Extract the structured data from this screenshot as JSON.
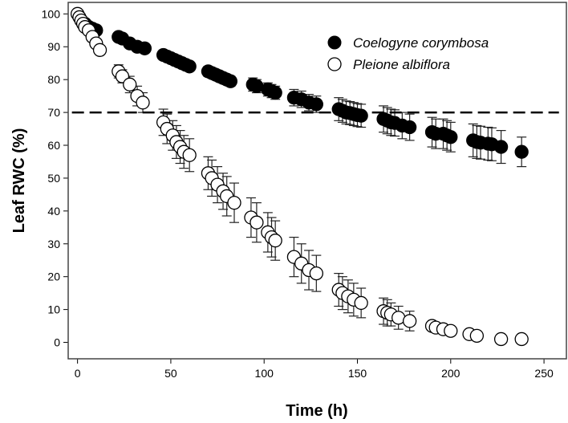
{
  "chart_data": {
    "type": "scatter",
    "title": "",
    "xlabel": "Time (h)",
    "ylabel": "Leaf RWC (%)",
    "xlim": [
      -5,
      262
    ],
    "ylim": [
      -5,
      103.5
    ],
    "xticks": [
      0,
      50,
      100,
      150,
      200,
      250
    ],
    "yticks": [
      0,
      10,
      20,
      30,
      40,
      50,
      60,
      70,
      80,
      90,
      100
    ],
    "grid": false,
    "legend_position": "top-right",
    "reference_line": {
      "y": 70,
      "style": "dashed"
    },
    "series": [
      {
        "name": "Coelogyne corymbosa",
        "marker": "filled-circle",
        "color": "#000000",
        "x": [
          2,
          4,
          6,
          8,
          10,
          22,
          24,
          28,
          32,
          36,
          46,
          48,
          50,
          52,
          54,
          56,
          58,
          60,
          70,
          72,
          74,
          76,
          78,
          80,
          82,
          94,
          96,
          102,
          104,
          106,
          116,
          120,
          124,
          128,
          140,
          142,
          144,
          146,
          148,
          150,
          152,
          164,
          166,
          168,
          170,
          174,
          178,
          190,
          192,
          196,
          198,
          200,
          212,
          214,
          216,
          220,
          222,
          227,
          238
        ],
        "y": [
          98,
          97,
          96,
          95.5,
          95,
          93,
          92.5,
          91,
          90,
          89.5,
          87.5,
          87,
          86.5,
          86,
          85.5,
          85,
          84.5,
          84,
          82.5,
          82,
          81.5,
          81,
          80.5,
          80,
          79.5,
          78.5,
          78,
          77,
          76.5,
          76,
          74.5,
          74,
          73,
          72.5,
          71,
          70.5,
          70,
          69.8,
          69.5,
          69.2,
          69,
          68,
          67.5,
          67,
          66.8,
          66,
          65.5,
          64,
          63.5,
          63.5,
          63,
          62.5,
          61.5,
          61,
          60.8,
          60.5,
          60.3,
          59.5,
          58
        ],
        "err": [
          0.5,
          0.5,
          0.5,
          0.5,
          0.5,
          1,
          1,
          1,
          1,
          1,
          1,
          1,
          1,
          1,
          1,
          1.2,
          1.2,
          1.2,
          1.5,
          1.5,
          1.5,
          1.5,
          1.5,
          1.5,
          1.5,
          2,
          2,
          2,
          2,
          2,
          2.5,
          2.5,
          2.5,
          2.5,
          3.5,
          3.5,
          3.5,
          3.5,
          3.5,
          3.5,
          3.5,
          4,
          4,
          4,
          4,
          4,
          4,
          4.5,
          4.5,
          4.5,
          4.5,
          4.5,
          5,
          5,
          5,
          5,
          5,
          5,
          4.5
        ]
      },
      {
        "name": "Pleione albiflora",
        "marker": "open-circle",
        "color": "#000000",
        "x": [
          0,
          1,
          2,
          3,
          4,
          6,
          8,
          10,
          12,
          22,
          24,
          28,
          32,
          35,
          46,
          48,
          51,
          53,
          55,
          57,
          60,
          70,
          72,
          75,
          78,
          80,
          84,
          93,
          96,
          102,
          104,
          106,
          116,
          120,
          124,
          128,
          140,
          142,
          145,
          148,
          152,
          164,
          166,
          168,
          172,
          178,
          190,
          192,
          196,
          200,
          210,
          214,
          227,
          238
        ],
        "y": [
          100,
          99,
          98,
          97,
          96,
          95,
          93,
          91,
          89,
          82.5,
          81,
          78.5,
          75,
          73,
          67,
          65,
          63,
          61,
          59.5,
          58,
          57,
          51.5,
          50,
          48,
          46,
          44.5,
          42.5,
          38,
          36.5,
          33.5,
          32,
          31,
          26,
          24,
          22,
          21,
          16,
          15,
          14,
          13,
          12,
          9.5,
          9,
          8.5,
          7.5,
          6.5,
          5,
          4.5,
          4,
          3.5,
          2.5,
          2,
          1,
          1
        ],
        "err": [
          0,
          0,
          0,
          0,
          0,
          0,
          0,
          0,
          0,
          2,
          2,
          2.5,
          3,
          3,
          4,
          4.5,
          4.5,
          5,
          5,
          5,
          5,
          5,
          5.5,
          5.5,
          5.5,
          6,
          6,
          6,
          6,
          6,
          6,
          6,
          6,
          6,
          6,
          5.5,
          5,
          5,
          5,
          5,
          4.5,
          4,
          4,
          3.5,
          3.5,
          3,
          0,
          0,
          0,
          0,
          0,
          0,
          0,
          0
        ]
      }
    ]
  }
}
